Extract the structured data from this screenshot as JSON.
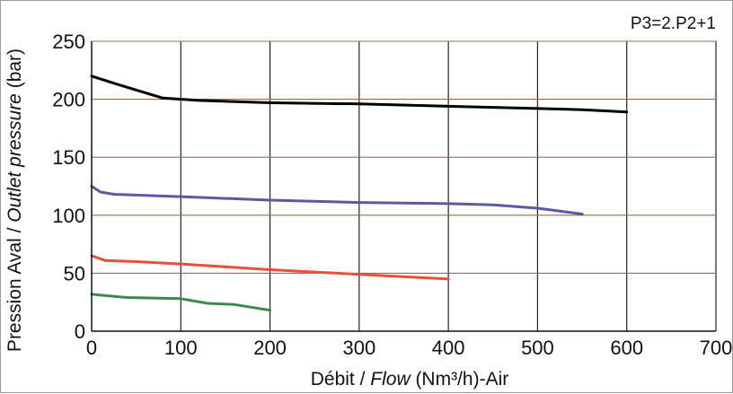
{
  "chart_data": {
    "type": "line",
    "annotation": "P3=2.P2+1",
    "ylabel": {
      "part1": "Pression Aval / ",
      "part2": "Outlet pressure",
      "part3": " (bar)"
    },
    "xlabel": {
      "part1": "Débit / ",
      "part2": "Flow",
      "part3": " (Nm³/h)-Air"
    },
    "xlim": [
      0,
      700
    ],
    "ylim": [
      0,
      250
    ],
    "x_ticks": [
      "0",
      "100",
      "200",
      "300",
      "400",
      "500",
      "600",
      "700"
    ],
    "y_ticks": [
      "0",
      "50",
      "100",
      "150",
      "200",
      "250"
    ],
    "grid": true,
    "series": [
      {
        "color": "#000000",
        "points": [
          [
            0,
            220
          ],
          [
            20,
            215
          ],
          [
            50,
            208
          ],
          [
            80,
            201
          ],
          [
            120,
            199
          ],
          [
            200,
            197
          ],
          [
            300,
            196
          ],
          [
            400,
            194
          ],
          [
            500,
            192
          ],
          [
            550,
            191
          ],
          [
            600,
            189
          ]
        ]
      },
      {
        "color": "#5a5aa0",
        "points": [
          [
            0,
            125
          ],
          [
            10,
            120
          ],
          [
            25,
            118
          ],
          [
            100,
            116
          ],
          [
            200,
            113
          ],
          [
            300,
            111
          ],
          [
            400,
            110
          ],
          [
            450,
            109
          ],
          [
            500,
            106
          ],
          [
            550,
            101
          ]
        ]
      },
      {
        "color": "#e8503a",
        "points": [
          [
            0,
            65
          ],
          [
            15,
            61
          ],
          [
            50,
            60
          ],
          [
            100,
            58
          ],
          [
            200,
            53
          ],
          [
            300,
            49
          ],
          [
            400,
            45
          ]
        ]
      },
      {
        "color": "#3a8a50",
        "points": [
          [
            0,
            32
          ],
          [
            10,
            31
          ],
          [
            40,
            29
          ],
          [
            100,
            28
          ],
          [
            130,
            24
          ],
          [
            160,
            23
          ],
          [
            200,
            18
          ]
        ]
      }
    ]
  }
}
